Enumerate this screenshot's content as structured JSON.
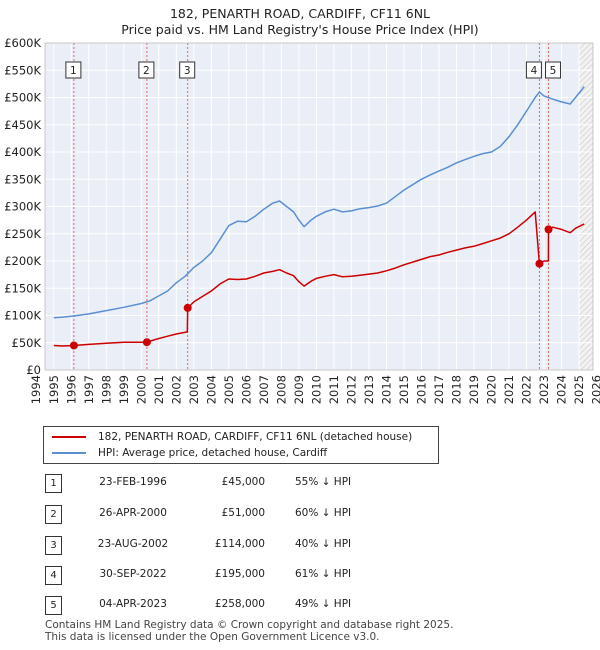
{
  "title_line1": "182, PENARTH ROAD, CARDIFF, CF11 6NL",
  "title_line2": "Price paid vs. HM Land Registry's House Price Index (HPI)",
  "chart_data": {
    "type": "line",
    "title": "182, PENARTH ROAD, CARDIFF, CF11 6NL — Price paid vs. HM Land Registry's House Price Index (HPI)",
    "xlim": [
      1994.5,
      2025.8
    ],
    "ylim": [
      0,
      600000
    ],
    "y_ticks": [
      0,
      50000,
      100000,
      150000,
      200000,
      250000,
      300000,
      350000,
      400000,
      450000,
      500000,
      550000,
      600000
    ],
    "y_tick_labels": [
      "£0",
      "£50K",
      "£100K",
      "£150K",
      "£200K",
      "£250K",
      "£300K",
      "£350K",
      "£400K",
      "£450K",
      "£500K",
      "£550K",
      "£600K"
    ],
    "x_ticks": [
      1994,
      1995,
      1996,
      1997,
      1998,
      1999,
      2000,
      2001,
      2002,
      2003,
      2004,
      2005,
      2006,
      2007,
      2008,
      2009,
      2010,
      2011,
      2012,
      2013,
      2014,
      2015,
      2016,
      2017,
      2018,
      2019,
      2020,
      2021,
      2022,
      2023,
      2024,
      2025,
      2026
    ],
    "grid": true,
    "hatched_after": 2025.0,
    "series": [
      {
        "name": "182, PENARTH ROAD, CARDIFF, CF11 6NL (detached house)",
        "color": "#cc0000",
        "points": [
          [
            1995.0,
            45000
          ],
          [
            1995.5,
            44000
          ],
          [
            1996.15,
            45000
          ],
          [
            1997,
            47000
          ],
          [
            1998,
            49000
          ],
          [
            1999,
            51000
          ],
          [
            2000.32,
            51000
          ],
          [
            2000.8,
            56000
          ],
          [
            2001.5,
            62000
          ],
          [
            2002.0,
            66000
          ],
          [
            2002.63,
            70000
          ],
          [
            2002.65,
            114000
          ],
          [
            2003,
            125000
          ],
          [
            2003.5,
            135000
          ],
          [
            2004,
            145000
          ],
          [
            2004.5,
            158000
          ],
          [
            2005,
            167000
          ],
          [
            2005.5,
            166000
          ],
          [
            2006,
            167000
          ],
          [
            2006.5,
            172000
          ],
          [
            2007,
            178000
          ],
          [
            2007.5,
            181000
          ],
          [
            2007.9,
            184000
          ],
          [
            2008.3,
            178000
          ],
          [
            2008.7,
            173000
          ],
          [
            2009.0,
            162000
          ],
          [
            2009.3,
            154000
          ],
          [
            2009.7,
            163000
          ],
          [
            2010,
            168000
          ],
          [
            2010.5,
            172000
          ],
          [
            2011,
            175000
          ],
          [
            2011.5,
            171000
          ],
          [
            2012,
            172000
          ],
          [
            2012.5,
            174000
          ],
          [
            2013,
            176000
          ],
          [
            2013.5,
            178000
          ],
          [
            2014,
            182000
          ],
          [
            2014.5,
            187000
          ],
          [
            2015,
            193000
          ],
          [
            2015.5,
            198000
          ],
          [
            2016,
            203000
          ],
          [
            2016.5,
            208000
          ],
          [
            2017,
            211000
          ],
          [
            2017.5,
            216000
          ],
          [
            2018,
            220000
          ],
          [
            2018.5,
            224000
          ],
          [
            2019,
            227000
          ],
          [
            2019.5,
            232000
          ],
          [
            2020,
            237000
          ],
          [
            2020.5,
            242000
          ],
          [
            2021,
            250000
          ],
          [
            2021.5,
            262000
          ],
          [
            2022,
            275000
          ],
          [
            2022.5,
            290000
          ],
          [
            2022.74,
            195000
          ],
          [
            2023.0,
            200000
          ],
          [
            2023.25,
            200000
          ],
          [
            2023.26,
            258000
          ],
          [
            2023.5,
            262000
          ],
          [
            2024.0,
            258000
          ],
          [
            2024.5,
            252000
          ],
          [
            2024.8,
            260000
          ],
          [
            2025.3,
            268000
          ]
        ]
      },
      {
        "name": "HPI: Average price, detached house, Cardiff",
        "color": "#5b8fd0",
        "points": [
          [
            1995.0,
            96000
          ],
          [
            1995.5,
            97000
          ],
          [
            1996.15,
            99000
          ],
          [
            1997,
            103000
          ],
          [
            1998,
            109000
          ],
          [
            1999,
            115000
          ],
          [
            2000,
            122000
          ],
          [
            2000.5,
            127000
          ],
          [
            2001,
            136000
          ],
          [
            2001.5,
            145000
          ],
          [
            2002,
            160000
          ],
          [
            2002.5,
            172000
          ],
          [
            2003,
            188000
          ],
          [
            2003.5,
            200000
          ],
          [
            2004,
            215000
          ],
          [
            2004.5,
            240000
          ],
          [
            2005,
            265000
          ],
          [
            2005.5,
            273000
          ],
          [
            2006,
            272000
          ],
          [
            2006.5,
            282000
          ],
          [
            2007,
            295000
          ],
          [
            2007.5,
            306000
          ],
          [
            2007.9,
            310000
          ],
          [
            2008.3,
            300000
          ],
          [
            2008.7,
            290000
          ],
          [
            2009.0,
            275000
          ],
          [
            2009.3,
            263000
          ],
          [
            2009.7,
            275000
          ],
          [
            2010,
            282000
          ],
          [
            2010.5,
            290000
          ],
          [
            2011,
            295000
          ],
          [
            2011.5,
            290000
          ],
          [
            2012,
            292000
          ],
          [
            2012.5,
            296000
          ],
          [
            2013,
            298000
          ],
          [
            2013.5,
            301000
          ],
          [
            2014,
            306000
          ],
          [
            2014.5,
            318000
          ],
          [
            2015,
            330000
          ],
          [
            2015.5,
            340000
          ],
          [
            2016,
            350000
          ],
          [
            2016.5,
            358000
          ],
          [
            2017,
            365000
          ],
          [
            2017.5,
            372000
          ],
          [
            2018,
            380000
          ],
          [
            2018.5,
            386000
          ],
          [
            2019,
            392000
          ],
          [
            2019.5,
            397000
          ],
          [
            2020,
            400000
          ],
          [
            2020.5,
            410000
          ],
          [
            2021,
            428000
          ],
          [
            2021.5,
            450000
          ],
          [
            2022,
            475000
          ],
          [
            2022.5,
            500000
          ],
          [
            2022.74,
            510000
          ],
          [
            2023.0,
            503000
          ],
          [
            2023.5,
            497000
          ],
          [
            2024,
            492000
          ],
          [
            2024.5,
            488000
          ],
          [
            2024.8,
            500000
          ],
          [
            2025.3,
            520000
          ]
        ]
      }
    ],
    "sales": [
      {
        "label": "1",
        "date": "23-FEB-1996",
        "x": 1996.15,
        "price": 45000,
        "price_text": "£45,000",
        "hpi": "55% ↓ HPI"
      },
      {
        "label": "2",
        "date": "26-APR-2000",
        "x": 2000.32,
        "price": 51000,
        "price_text": "£51,000",
        "hpi": "60% ↓ HPI"
      },
      {
        "label": "3",
        "date": "23-AUG-2002",
        "x": 2002.65,
        "price": 114000,
        "price_text": "£114,000",
        "hpi": "40% ↓ HPI"
      },
      {
        "label": "4",
        "date": "30-SEP-2022",
        "x": 2022.74,
        "price": 195000,
        "price_text": "£195,000",
        "hpi": "61% ↓ HPI"
      },
      {
        "label": "5",
        "date": "04-APR-2023",
        "x": 2023.26,
        "price": 258000,
        "price_text": "£258,000",
        "hpi": "49% ↓ HPI"
      }
    ]
  },
  "legend": {
    "property_label": "182, PENARTH ROAD, CARDIFF, CF11 6NL (detached house)",
    "hpi_label": "HPI: Average price, detached house, Cardiff"
  },
  "footer": {
    "line1": "Contains HM Land Registry data © Crown copyright and database right 2025.",
    "line2": "This data is licensed under the Open Government Licence v3.0."
  }
}
